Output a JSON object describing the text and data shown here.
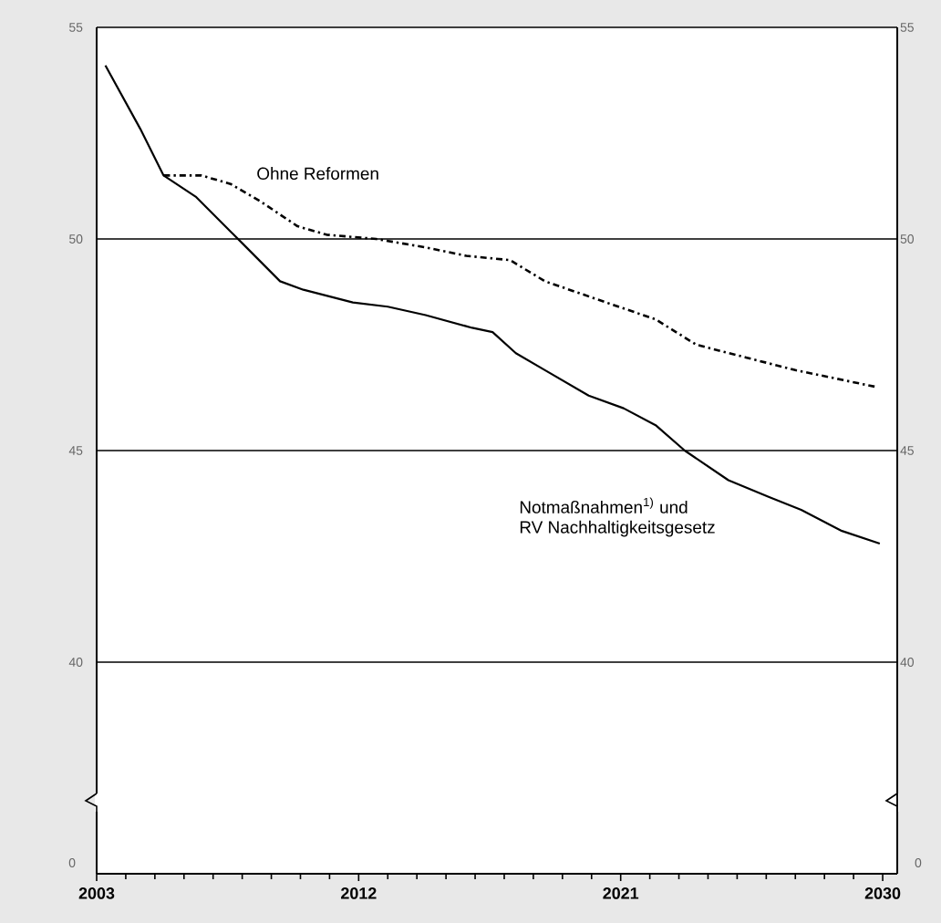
{
  "chart_data": {
    "type": "line",
    "xlim": [
      2003,
      2030.5
    ],
    "xticks": [
      2003,
      2012,
      2021,
      2030
    ],
    "ylim": [
      35,
      55
    ],
    "yticks": [
      40,
      45,
      50,
      55
    ],
    "y2lim": [
      35,
      55
    ],
    "y2ticks": [
      40,
      45,
      50,
      55
    ],
    "grid": "y",
    "annotations": [
      "0"
    ],
    "series": [
      {
        "name": "Ohne Reformen",
        "color": "#000000",
        "line_style": "dashed",
        "x": [
          2005.3,
          2006.6,
          2007.6,
          2008.6,
          2009.9,
          2010.9,
          2012.6,
          2014.3,
          2015.7,
          2017.2,
          2018.4,
          2020.5,
          2022.2,
          2023.6,
          2025.3,
          2027.0,
          2029.8
        ],
        "values": [
          51.5,
          51.5,
          51.3,
          50.9,
          50.3,
          50.1,
          50.0,
          49.8,
          49.6,
          49.5,
          49.0,
          48.5,
          48.1,
          47.5,
          47.2,
          46.9,
          46.5
        ]
      },
      {
        "name": "Notmaßnahmen$^{1)}$ und RV Nachhaltigkeitsgesetz",
        "color": "#000000",
        "line_style": "solid",
        "x": [
          2003.3,
          2004.5,
          2005.3,
          2006.4,
          2008.0,
          2009.3,
          2010.1,
          2011.8,
          2013.0,
          2014.3,
          2015.9,
          2016.6,
          2017.4,
          2018.4,
          2019.9,
          2021.1,
          2022.2,
          2023.2,
          2024.7,
          2026.1,
          2027.2,
          2028.6,
          2029.9
        ],
        "values": [
          54.1,
          52.6,
          51.5,
          51.0,
          49.9,
          49.0,
          48.8,
          48.5,
          48.4,
          48.2,
          47.9,
          47.8,
          47.3,
          46.9,
          46.3,
          46.0,
          45.6,
          45.0,
          44.3,
          43.9,
          43.6,
          43.1,
          42.8
        ]
      }
    ]
  }
}
